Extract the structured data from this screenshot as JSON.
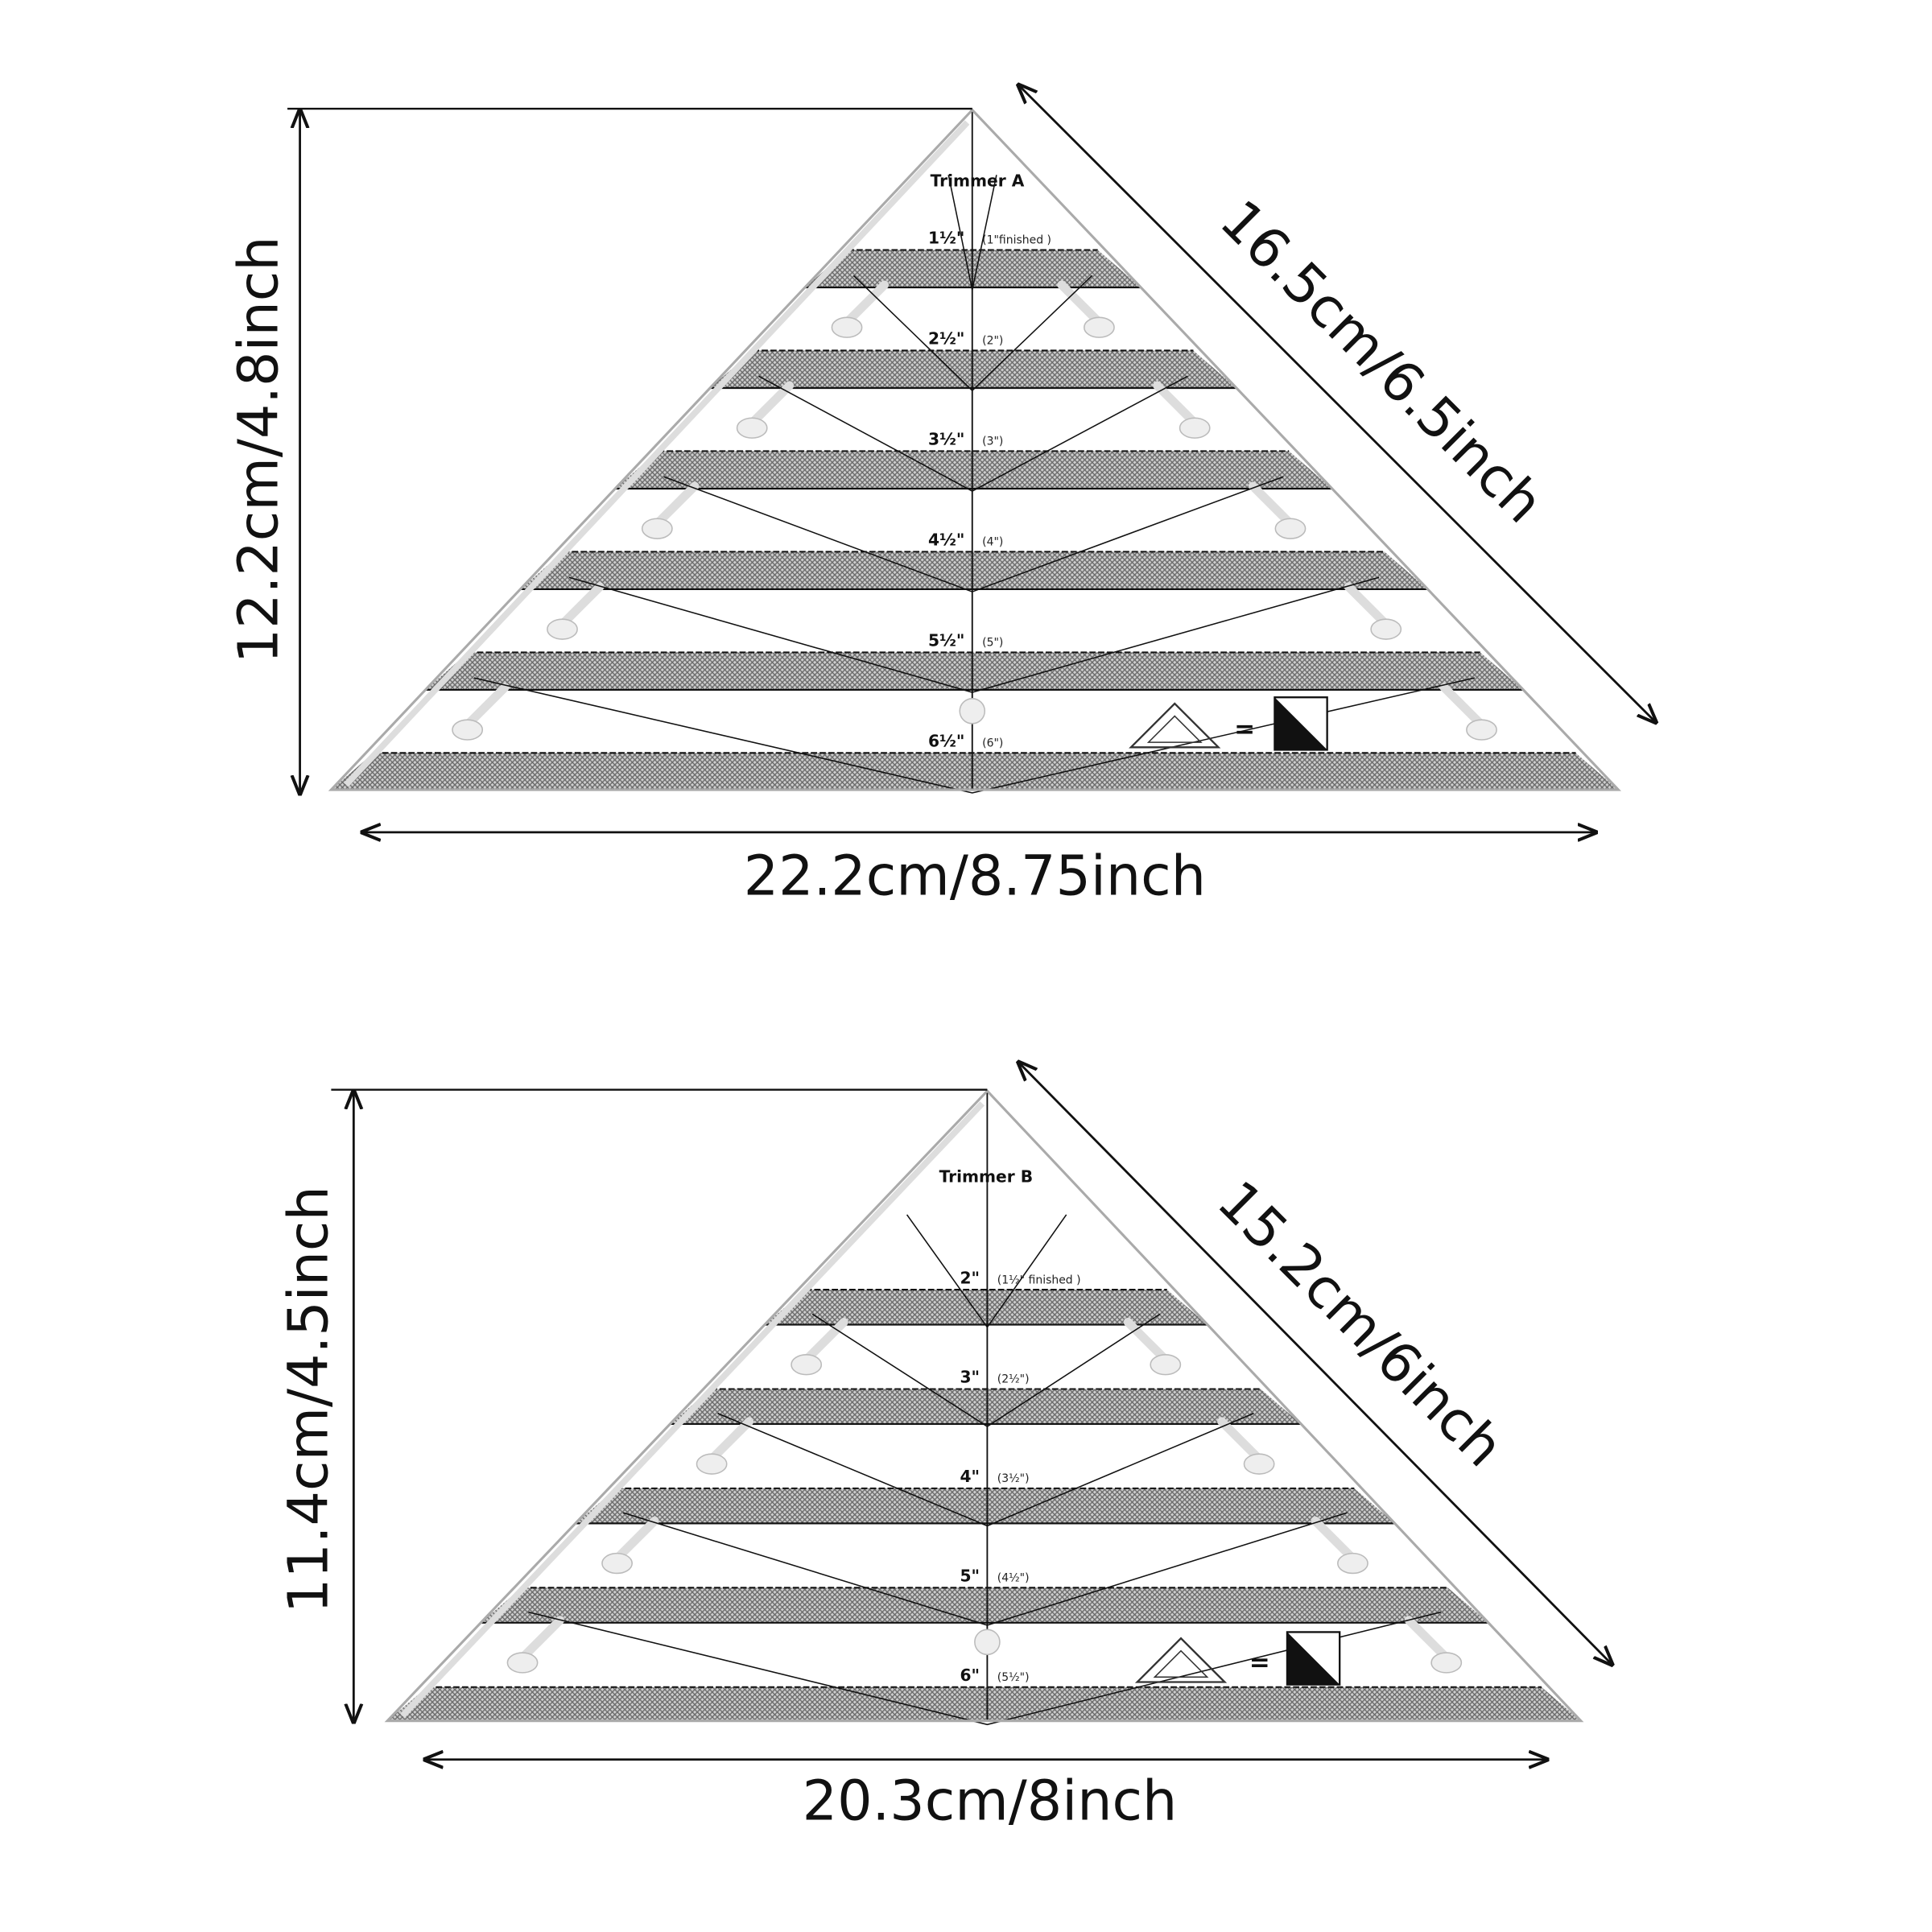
{
  "trimmers": [
    {
      "title": "Trimmer A",
      "height_label": "12.2cm/4.8inch",
      "side_label": "16.5cm/6.5inch",
      "base_label": "22.2cm/8.75inch",
      "rows": [
        {
          "size": "1½\"",
          "finished": "(1\"finished )"
        },
        {
          "size": "2½\"",
          "finished": "(2\")"
        },
        {
          "size": "3½\"",
          "finished": "(3\")"
        },
        {
          "size": "4½\"",
          "finished": "(4\")"
        },
        {
          "size": "5½\"",
          "finished": "(5\")"
        },
        {
          "size": "6½\"",
          "finished": "(6\")"
        }
      ],
      "equals_symbol": "="
    },
    {
      "title": "Trimmer B",
      "height_label": "11.4cm/4.5inch",
      "side_label": "15.2cm/6inch",
      "base_label": "20.3cm/8inch",
      "rows": [
        {
          "size": "2\"",
          "finished": "(1½\"  finished )"
        },
        {
          "size": "3\"",
          "finished": "(2½\")"
        },
        {
          "size": "4\"",
          "finished": "(3½\")"
        },
        {
          "size": "5\"",
          "finished": "(4½\")"
        },
        {
          "size": "6\"",
          "finished": "(5½\")"
        }
      ],
      "equals_symbol": "="
    }
  ],
  "colors": {
    "line": "#111111",
    "hatch": "#8a8a8a",
    "background": "#ffffff"
  }
}
